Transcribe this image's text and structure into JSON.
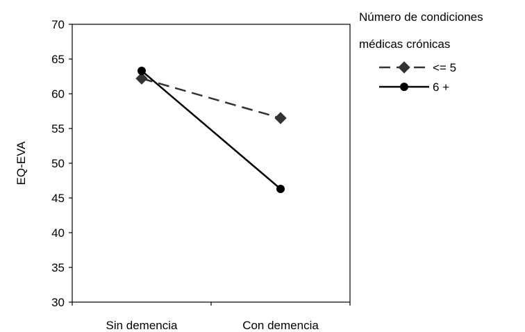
{
  "chart_data": {
    "type": "line",
    "categories": [
      "Sin demencia",
      "Con demencia"
    ],
    "ylabel": "EQ-EVA",
    "xlabel": "",
    "ylim": [
      30,
      70
    ],
    "yticks": [
      30,
      35,
      40,
      45,
      50,
      55,
      60,
      65,
      70
    ],
    "grid": false,
    "legend": {
      "title_line1": "Número de condiciones",
      "title_line2": "médicas crónicas",
      "placement": "top-right outside plot"
    },
    "series": [
      {
        "name": "<= 5",
        "values": [
          62.2,
          56.5
        ],
        "marker": "diamond",
        "line": "dashed",
        "color": "#333333"
      },
      {
        "name": "6 +",
        "values": [
          63.3,
          46.3
        ],
        "marker": "circle",
        "line": "solid",
        "color": "#000000"
      }
    ]
  }
}
